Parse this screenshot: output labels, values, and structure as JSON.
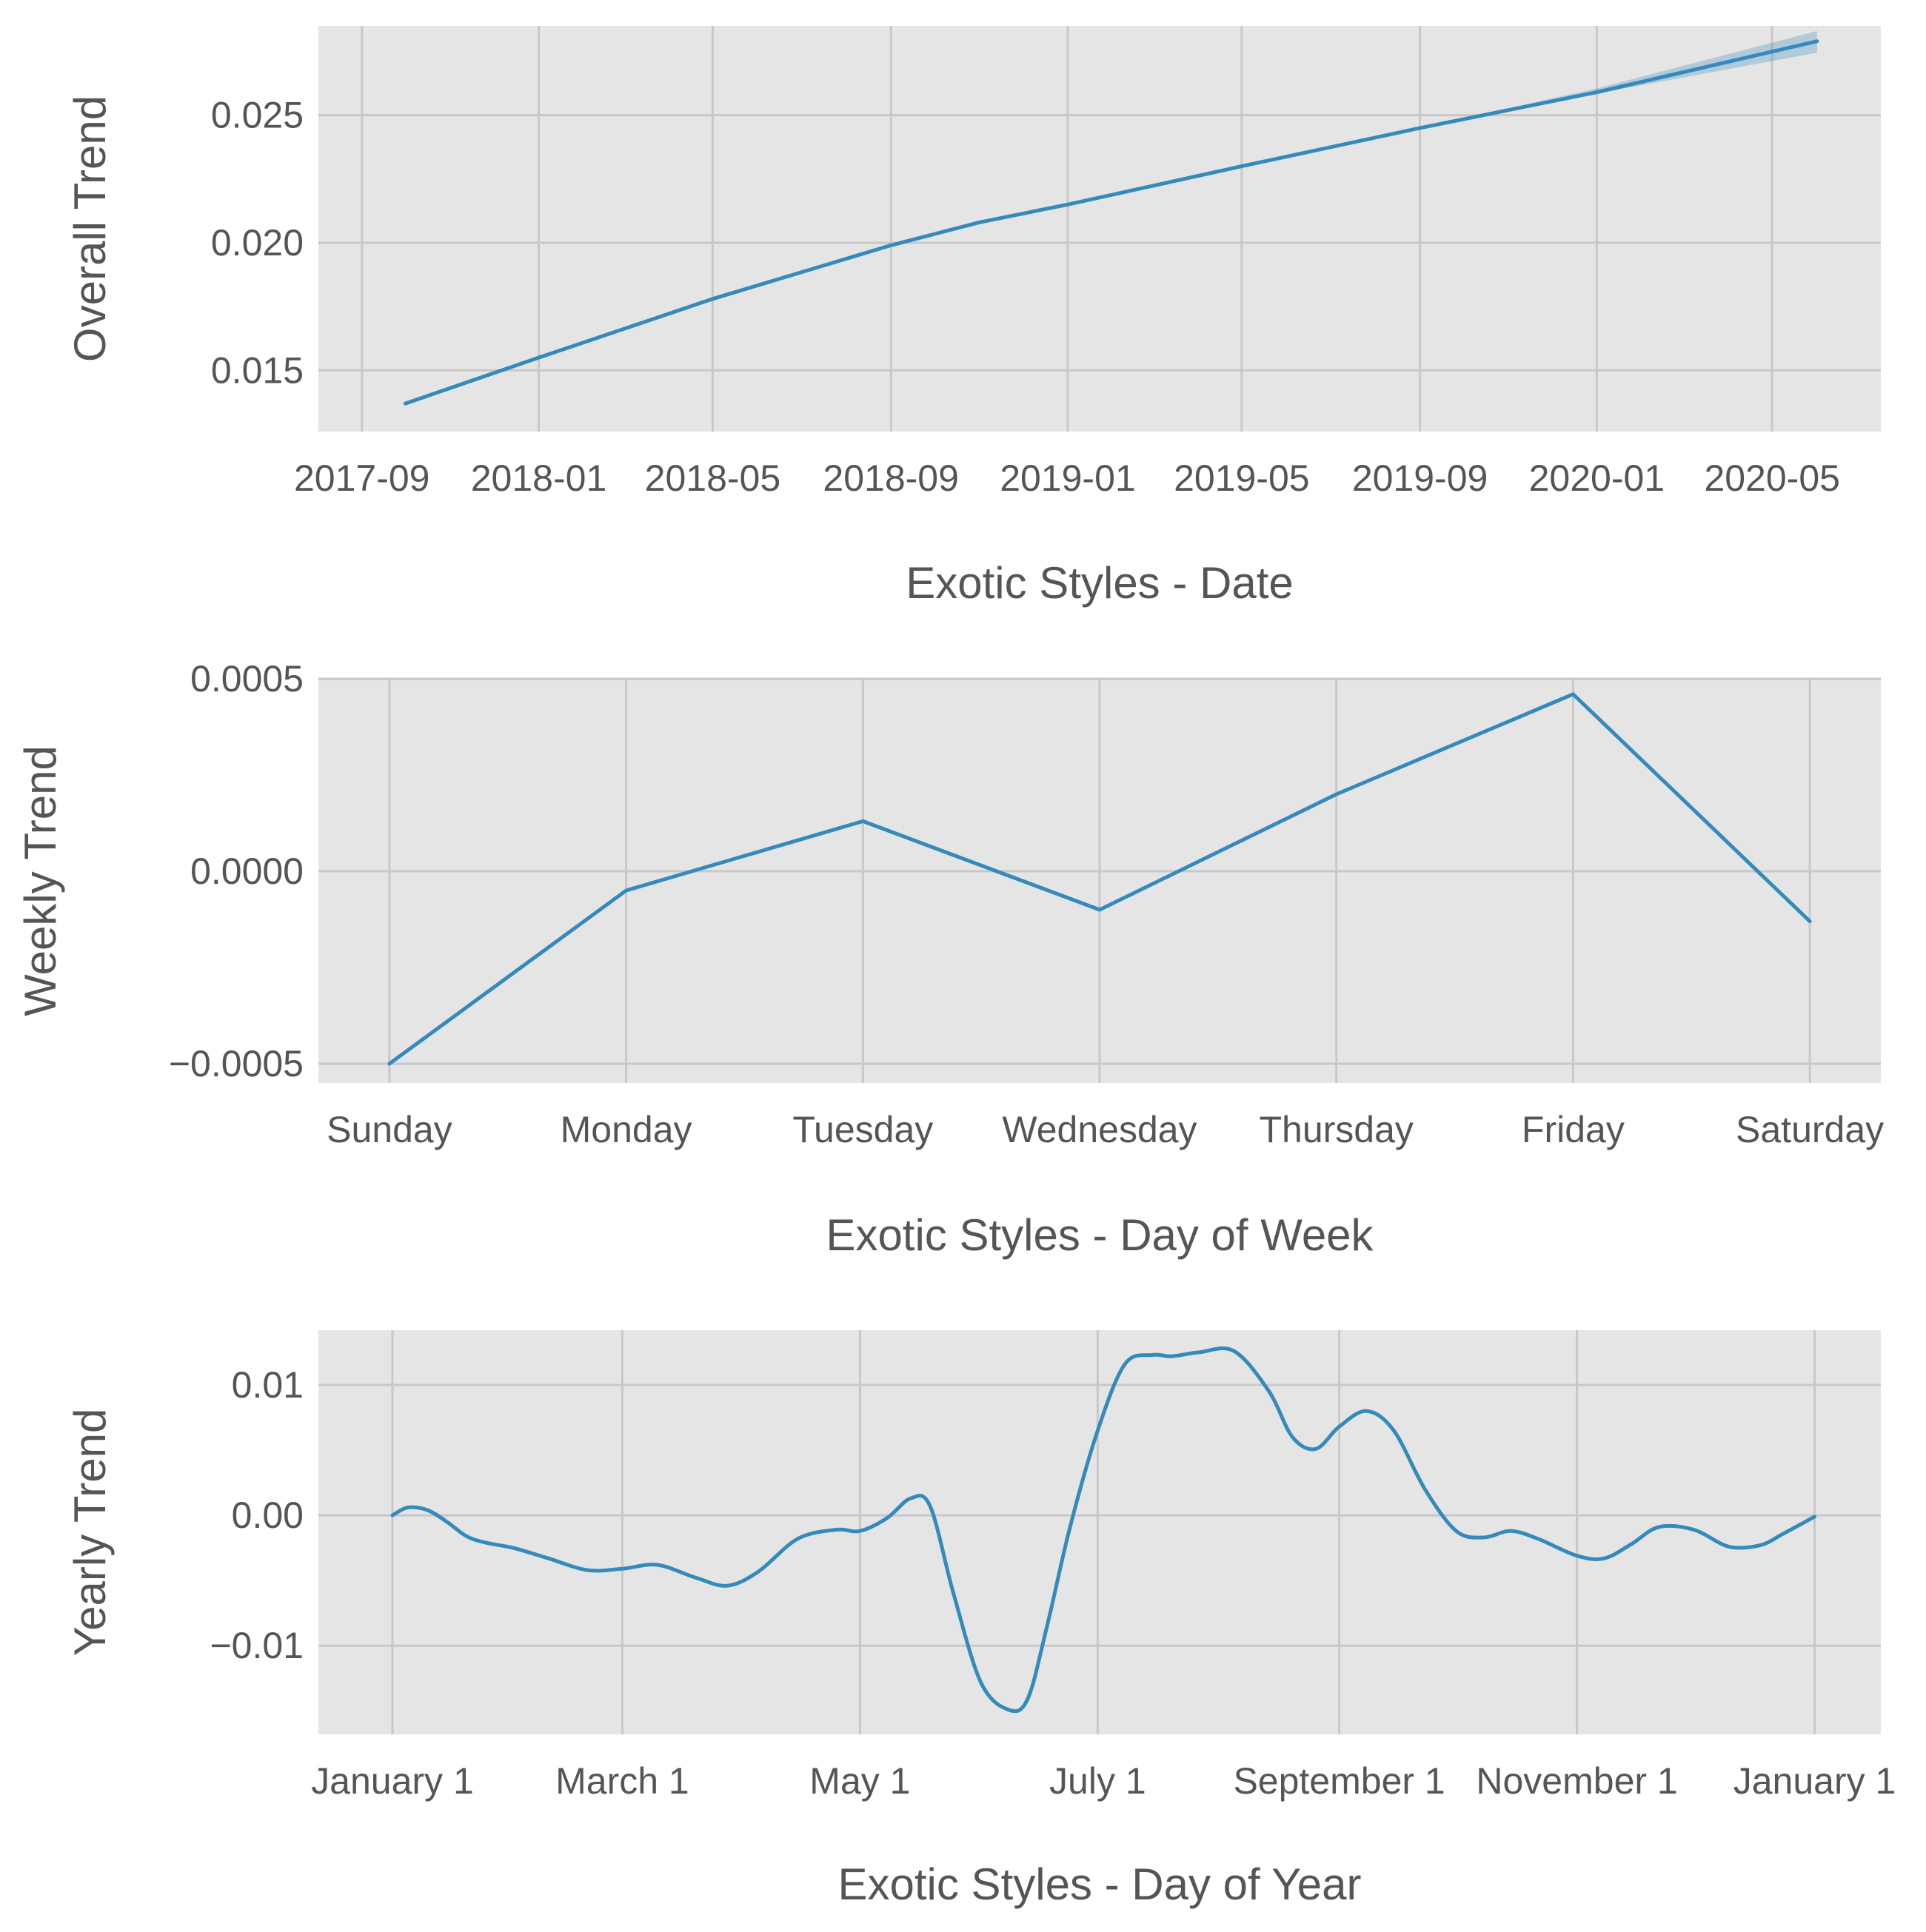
{
  "colors": {
    "line": "#348abd",
    "band": "#348abd",
    "background": "#e5e5e5",
    "grid": "#c8c8c8",
    "text": "#555555"
  },
  "chart_data": [
    {
      "type": "line",
      "ylabel": "Overall Trend",
      "xlabel": "Exotic Styles - Date",
      "x_axis": "date",
      "xlim": [
        "2017-08-02",
        "2020-07-15"
      ],
      "ylim": [
        0.0126,
        0.0285
      ],
      "grid": true,
      "xticks": [
        {
          "value": "2017-09-01",
          "label": "2017-09"
        },
        {
          "value": "2018-01-01",
          "label": "2018-01"
        },
        {
          "value": "2018-05-01",
          "label": "2018-05"
        },
        {
          "value": "2018-09-01",
          "label": "2018-09"
        },
        {
          "value": "2019-01-01",
          "label": "2019-01"
        },
        {
          "value": "2019-05-01",
          "label": "2019-05"
        },
        {
          "value": "2019-09-01",
          "label": "2019-09"
        },
        {
          "value": "2020-01-01",
          "label": "2020-01"
        },
        {
          "value": "2020-05-01",
          "label": "2020-05"
        }
      ],
      "yticks": [
        {
          "value": 0.015,
          "label": "0.015"
        },
        {
          "value": 0.02,
          "label": "0.020"
        },
        {
          "value": 0.025,
          "label": "0.025"
        }
      ],
      "series": [
        {
          "x": [
            "2017-10-01",
            "2018-01-01",
            "2018-05-01",
            "2018-09-01",
            "2018-11-01",
            "2019-01-01",
            "2019-05-01",
            "2019-09-01",
            "2020-01-01",
            "2020-06-01"
          ],
          "y": [
            0.0137,
            0.0155,
            0.0178,
            0.0199,
            0.0208,
            0.0215,
            0.023,
            0.0245,
            0.0259,
            0.0279
          ],
          "lower": [
            0.0137,
            0.0155,
            0.0178,
            0.0199,
            0.0208,
            0.0215,
            0.023,
            0.0245,
            0.02585,
            0.02745
          ],
          "upper": [
            0.0137,
            0.0155,
            0.0178,
            0.0199,
            0.0208,
            0.0215,
            0.023,
            0.0245,
            0.02605,
            0.0283
          ]
        }
      ]
    },
    {
      "type": "line",
      "ylabel": "Weekly Trend",
      "xlabel": "Exotic Styles - Day of Week",
      "xlim": [
        -0.3,
        6.3
      ],
      "ylim": [
        -0.00055,
        0.0005
      ],
      "grid": true,
      "categories": [
        "Sunday",
        "Monday",
        "Tuesday",
        "Wednesday",
        "Thursday",
        "Friday",
        "Saturday"
      ],
      "yticks": [
        {
          "value": -0.0005,
          "label": "−0.0005"
        },
        {
          "value": 0.0,
          "label": "0.0000"
        },
        {
          "value": 0.0005,
          "label": "0.0005"
        }
      ],
      "series": [
        {
          "values": [
            -0.0005,
            -5e-05,
            0.00013,
            -0.0001,
            0.0002,
            0.00046,
            -0.00013
          ]
        }
      ]
    },
    {
      "type": "line",
      "ylabel": "Yearly Trend",
      "xlabel": "Exotic Styles - Day of Year",
      "x_axis": "date",
      "xlim": [
        "2016-12-13",
        "2018-01-18"
      ],
      "ylim": [
        -0.0168,
        0.0142
      ],
      "grid": true,
      "xticks": [
        {
          "value": "2017-01-01",
          "label": "January 1"
        },
        {
          "value": "2017-03-01",
          "label": "March 1"
        },
        {
          "value": "2017-05-01",
          "label": "May 1"
        },
        {
          "value": "2017-07-01",
          "label": "July 1"
        },
        {
          "value": "2017-09-01",
          "label": "September 1"
        },
        {
          "value": "2017-11-01",
          "label": "November 1"
        },
        {
          "value": "2018-01-01",
          "label": "January 1"
        }
      ],
      "yticks": [
        {
          "value": -0.01,
          "label": "−0.01"
        },
        {
          "value": 0.0,
          "label": "0.00"
        },
        {
          "value": 0.01,
          "label": "0.01"
        }
      ],
      "series": [
        {
          "x": [
            "2017-01-01",
            "2017-01-05",
            "2017-01-10",
            "2017-01-15",
            "2017-01-20",
            "2017-01-25",
            "2017-02-01",
            "2017-02-10",
            "2017-02-20",
            "2017-03-01",
            "2017-03-10",
            "2017-03-20",
            "2017-03-28",
            "2017-04-05",
            "2017-04-15",
            "2017-04-25",
            "2017-05-01",
            "2017-05-08",
            "2017-05-14",
            "2017-05-19",
            "2017-05-25",
            "2017-06-01",
            "2017-06-08",
            "2017-06-13",
            "2017-06-18",
            "2017-06-24",
            "2017-07-01",
            "2017-07-08",
            "2017-07-15",
            "2017-07-20",
            "2017-07-27",
            "2017-08-05",
            "2017-08-14",
            "2017-08-20",
            "2017-08-26",
            "2017-09-01",
            "2017-09-08",
            "2017-09-15",
            "2017-09-23",
            "2017-10-01",
            "2017-10-08",
            "2017-10-15",
            "2017-10-22",
            "2017-11-01",
            "2017-11-08",
            "2017-11-15",
            "2017-11-22",
            "2017-12-01",
            "2017-12-10",
            "2017-12-18",
            "2017-12-24",
            "2018-01-01"
          ],
          "y": [
            0.0,
            0.0006,
            0.0004,
            -0.0005,
            -0.0016,
            -0.0021,
            -0.0025,
            -0.0033,
            -0.0042,
            -0.0041,
            -0.0038,
            -0.0048,
            -0.0054,
            -0.0043,
            -0.0018,
            -0.0011,
            -0.0012,
            -0.0002,
            0.0013,
            0.0007,
            -0.006,
            -0.0128,
            -0.0149,
            -0.0141,
            -0.0085,
            -0.0008,
            0.0065,
            0.0116,
            0.0123,
            0.0122,
            0.0125,
            0.0126,
            0.0095,
            0.006,
            0.0051,
            0.0068,
            0.008,
            0.0065,
            0.002,
            -0.0012,
            -0.0017,
            -0.0012,
            -0.0018,
            -0.0031,
            -0.0033,
            -0.0022,
            -0.0009,
            -0.0011,
            -0.0024,
            -0.0023,
            -0.0014,
            -0.0001
          ]
        }
      ]
    }
  ]
}
